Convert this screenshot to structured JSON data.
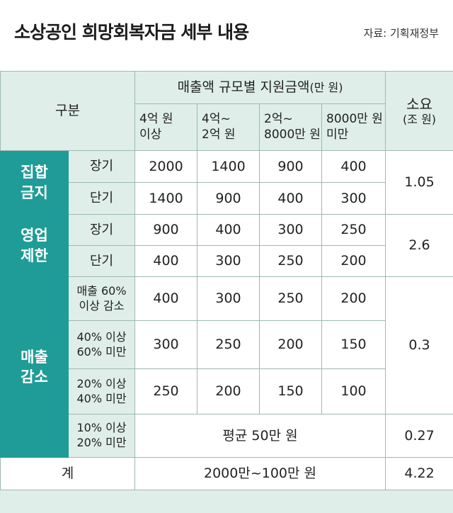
{
  "header": {
    "title": "소상공인 희망회복자금 세부 내용",
    "source": "자료: 기획재정부"
  },
  "table": {
    "corner": "구분",
    "group_header_main": "매출액 규모별 지원금액",
    "group_header_unit": "(만 원)",
    "req_header_main": "소요",
    "req_header_unit": "(조 원)",
    "columns": [
      {
        "line1": "4억 원",
        "line2": "이상"
      },
      {
        "line1": "4억~",
        "line2": "2억 원"
      },
      {
        "line1": "2억~",
        "line2": "8000만 원"
      },
      {
        "line1": "8000만 원",
        "line2": "미만"
      }
    ],
    "groups": [
      {
        "label_line1": "집합",
        "label_line2": "금지",
        "total": "1.05",
        "rows": [
          {
            "sub": "장기",
            "values": [
              "2000",
              "1400",
              "900",
              "400"
            ]
          },
          {
            "sub": "단기",
            "values": [
              "1400",
              "900",
              "400",
              "300"
            ]
          }
        ]
      },
      {
        "label_line1": "영업",
        "label_line2": "제한",
        "total": "2.6",
        "rows": [
          {
            "sub": "장기",
            "values": [
              "900",
              "400",
              "300",
              "250"
            ]
          },
          {
            "sub": "단기",
            "values": [
              "400",
              "300",
              "250",
              "200"
            ]
          }
        ]
      },
      {
        "label_line1": "매출",
        "label_line2": "감소",
        "total": "0.3",
        "total2": "0.27",
        "rows": [
          {
            "sub_line1": "매출 60%",
            "sub_line2": "이상 감소",
            "values": [
              "400",
              "300",
              "250",
              "200"
            ]
          },
          {
            "sub_line1": "40% 이상",
            "sub_line2": "60% 미만",
            "values": [
              "300",
              "250",
              "200",
              "150"
            ]
          },
          {
            "sub_line1": "20% 이상",
            "sub_line2": "40% 미만",
            "values": [
              "250",
              "200",
              "150",
              "100"
            ]
          },
          {
            "sub_line1": "10% 이상",
            "sub_line2": "20% 미만",
            "avg": "평균 50만 원"
          }
        ]
      }
    ],
    "footer": {
      "label": "계",
      "range": "2000만~100만 원",
      "total": "4.22"
    }
  }
}
